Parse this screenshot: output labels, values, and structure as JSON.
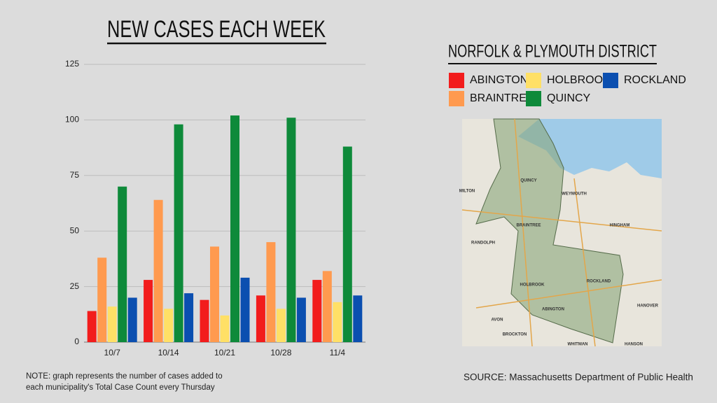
{
  "chart_data": {
    "type": "bar",
    "title": "NEW CASES EACH WEEK",
    "legend_title": "NORFOLK & PLYMOUTH DISTRICT",
    "categories": [
      "10/7",
      "10/14",
      "10/21",
      "10/28",
      "11/4"
    ],
    "series": [
      {
        "name": "ABINGTON",
        "color": "#f21c1c",
        "values": [
          14,
          28,
          19,
          21,
          28
        ]
      },
      {
        "name": "BRAINTREE",
        "color": "#ff9a4f",
        "values": [
          38,
          64,
          43,
          45,
          32
        ]
      },
      {
        "name": "HOLBROOK",
        "color": "#ffe066",
        "values": [
          16,
          15,
          12,
          15,
          18
        ]
      },
      {
        "name": "QUINCY",
        "color": "#0e8a3a",
        "values": [
          70,
          98,
          102,
          101,
          88
        ]
      },
      {
        "name": "ROCKLAND",
        "color": "#0b4fb0",
        "values": [
          20,
          22,
          29,
          20,
          21
        ]
      }
    ],
    "ylim": [
      0,
      125
    ],
    "yticks": [
      0,
      25,
      50,
      75,
      100,
      125
    ],
    "grid": true,
    "note": [
      "NOTE: graph represents the number of cases added to",
      "each municipality's Total Case Count every Thursday"
    ],
    "source": "SOURCE: Massachusetts Department of Public Health"
  },
  "map": {
    "labels": [
      "QUINCY",
      "WEYMOUTH",
      "BRAINTREE",
      "HINGHAM",
      "RANDOLPH",
      "HOLBROOK",
      "ROCKLAND",
      "ABINGTON",
      "AVON",
      "BROCKTON",
      "WHITMAN",
      "HANOVER",
      "HANSON",
      "MILTON"
    ]
  }
}
